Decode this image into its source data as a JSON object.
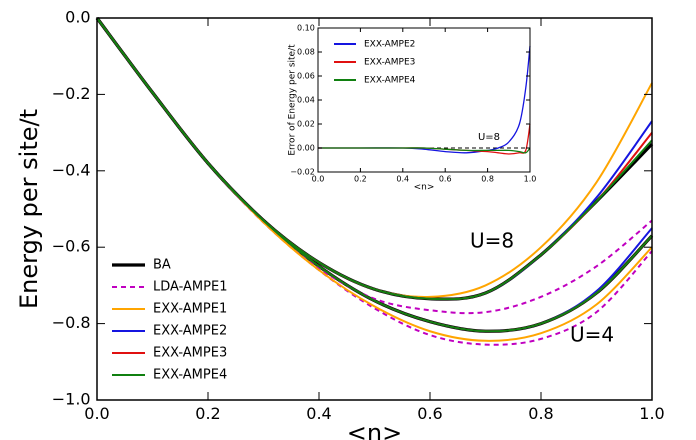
{
  "chart_data": [
    {
      "type": "line",
      "x_label": "<n>",
      "y_label": "Energy per site/t",
      "annotations": [
        "U=8",
        "U=4"
      ],
      "x": [
        0,
        0.1,
        0.2,
        0.3,
        0.4,
        0.5,
        0.6,
        0.7,
        0.8,
        0.9,
        1.0
      ],
      "xlim": [
        0,
        1.0
      ],
      "ylim": [
        -1.0,
        0.0
      ],
      "xticks": [
        {
          "value": 0,
          "label": "0.0"
        },
        {
          "value": 0.2,
          "label": "0.2"
        },
        {
          "value": 0.4,
          "label": "0.4"
        },
        {
          "value": 0.6,
          "label": "0.6"
        },
        {
          "value": 0.8,
          "label": "0.8"
        },
        {
          "value": 1.0,
          "label": "1.0"
        }
      ],
      "yticks": [
        {
          "value": 0,
          "label": "0.0"
        },
        {
          "value": -0.2,
          "label": "−0.2"
        },
        {
          "value": -0.4,
          "label": "−0.4"
        },
        {
          "value": -0.6,
          "label": "−0.6"
        },
        {
          "value": -0.8,
          "label": "−0.8"
        },
        {
          "value": -1.0,
          "label": "−1.0"
        }
      ],
      "legend": "lower left",
      "series": [
        {
          "name": "BA",
          "color": "#000000",
          "dashed": false,
          "values": [
            0,
            -0.195,
            -0.38,
            -0.53,
            -0.64,
            -0.71,
            -0.735,
            -0.72,
            -0.62,
            -0.48,
            -0.33
          ],
          "values_u4": [
            0,
            -0.195,
            -0.38,
            -0.53,
            -0.65,
            -0.74,
            -0.795,
            -0.82,
            -0.8,
            -0.72,
            -0.57
          ]
        },
        {
          "name": "LDA-AMPE1",
          "color": "#c000c0",
          "dashed": true,
          "values": [
            0,
            -0.195,
            -0.38,
            -0.535,
            -0.655,
            -0.735,
            -0.765,
            -0.77,
            -0.73,
            -0.65,
            -0.53
          ],
          "values_u4": [
            0,
            -0.195,
            -0.38,
            -0.535,
            -0.66,
            -0.76,
            -0.83,
            -0.855,
            -0.84,
            -0.77,
            -0.61
          ]
        },
        {
          "name": "EXX-AMPE1",
          "color": "#ffa500",
          "dashed": false,
          "values": [
            0,
            -0.195,
            -0.38,
            -0.53,
            -0.64,
            -0.71,
            -0.73,
            -0.7,
            -0.6,
            -0.43,
            -0.17
          ],
          "values_u4": [
            0,
            -0.195,
            -0.38,
            -0.535,
            -0.66,
            -0.755,
            -0.82,
            -0.845,
            -0.825,
            -0.75,
            -0.6
          ]
        },
        {
          "name": "EXX-AMPE2",
          "color": "#1515e0",
          "dashed": false,
          "values": [
            0,
            -0.195,
            -0.38,
            -0.53,
            -0.64,
            -0.71,
            -0.735,
            -0.72,
            -0.62,
            -0.47,
            -0.27
          ],
          "values_u4": [
            0,
            -0.195,
            -0.38,
            -0.53,
            -0.65,
            -0.74,
            -0.795,
            -0.82,
            -0.8,
            -0.715,
            -0.55
          ]
        },
        {
          "name": "EXX-AMPE3",
          "color": "#e01010",
          "dashed": false,
          "values": [
            0,
            -0.195,
            -0.38,
            -0.53,
            -0.64,
            -0.71,
            -0.735,
            -0.72,
            -0.62,
            -0.48,
            -0.3
          ],
          "values_u4": [
            0,
            -0.195,
            -0.38,
            -0.53,
            -0.65,
            -0.74,
            -0.795,
            -0.82,
            -0.8,
            -0.72,
            -0.57
          ]
        },
        {
          "name": "EXX-AMPE4",
          "color": "#108010",
          "dashed": false,
          "values": [
            0,
            -0.195,
            -0.38,
            -0.53,
            -0.64,
            -0.71,
            -0.735,
            -0.72,
            -0.62,
            -0.48,
            -0.32
          ],
          "values_u4": [
            0,
            -0.195,
            -0.38,
            -0.53,
            -0.65,
            -0.74,
            -0.795,
            -0.82,
            -0.8,
            -0.72,
            -0.57
          ]
        }
      ]
    },
    {
      "type": "line",
      "x_label": "<n>",
      "y_label": "Error of Energy per site/t",
      "annotations": [
        "U=8"
      ],
      "reference_line": 0,
      "x": [
        0,
        0.2,
        0.4,
        0.5,
        0.6,
        0.7,
        0.8,
        0.85,
        0.9,
        0.95,
        0.98,
        1.0
      ],
      "xlim": [
        0,
        1.0
      ],
      "ylim": [
        -0.02,
        0.1
      ],
      "xticks": [
        {
          "value": 0,
          "label": "0.0"
        },
        {
          "value": 0.2,
          "label": "0.2"
        },
        {
          "value": 0.4,
          "label": "0.4"
        },
        {
          "value": 0.6,
          "label": "0.6"
        },
        {
          "value": 0.8,
          "label": "0.8"
        },
        {
          "value": 1.0,
          "label": "1.0"
        }
      ],
      "yticks": [
        {
          "value": -0.02,
          "label": "−0.02"
        },
        {
          "value": 0,
          "label": "0.00"
        },
        {
          "value": 0.02,
          "label": "0.02"
        },
        {
          "value": 0.04,
          "label": "0.04"
        },
        {
          "value": 0.06,
          "label": "0.06"
        },
        {
          "value": 0.08,
          "label": "0.08"
        },
        {
          "value": 0.1,
          "label": "0.10"
        }
      ],
      "legend": "upper left",
      "series": [
        {
          "name": "EXX-AMPE2",
          "color": "#1515e0",
          "dashed": false,
          "values": [
            0,
            0,
            0,
            -0.001,
            -0.003,
            -0.004,
            -0.002,
            0.0,
            0.005,
            0.02,
            0.05,
            0.085
          ]
        },
        {
          "name": "EXX-AMPE3",
          "color": "#e01010",
          "dashed": false,
          "values": [
            0,
            0,
            0,
            0,
            -0.001,
            -0.002,
            -0.003,
            -0.004,
            -0.005,
            -0.004,
            -0.002,
            0.02
          ]
        },
        {
          "name": "EXX-AMPE4",
          "color": "#108010",
          "dashed": false,
          "values": [
            0,
            0,
            0,
            0,
            -0.001,
            -0.002,
            -0.002,
            -0.002,
            -0.002,
            -0.003,
            -0.004,
            0.0
          ]
        }
      ]
    }
  ]
}
